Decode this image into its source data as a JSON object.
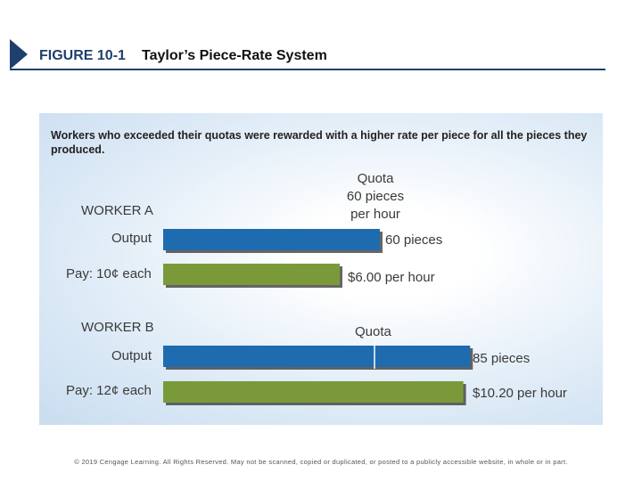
{
  "header": {
    "figure_label": "FIGURE 10-1",
    "figure_title": "Taylor’s Piece-Rate System"
  },
  "caption": "Workers who exceeded their quotas were rewarded with a higher rate per piece for all the pieces they produced.",
  "footer": {
    "copyright": "© 2019 Cengage Learning. All Rights Reserved. May not be scanned, copied or duplicated, or posted to a publicly accessible website, in whole or in part."
  },
  "colors": {
    "output_bar": "#1f6bb0",
    "pay_bar": "#7a9a3a",
    "header": "#1f3f6d"
  },
  "chart_data": {
    "type": "bar",
    "orientation": "horizontal",
    "title": "Taylor’s Piece-Rate System",
    "quota_pieces": 60,
    "quota_label_a": [
      "Quota",
      "60 pieces",
      "per hour"
    ],
    "quota_label_b": "Quota",
    "groups": [
      {
        "worker": "WORKER A",
        "output_label": "Output",
        "pay_label": "Pay: 10¢ each",
        "output_pieces": 60,
        "output_value_label": "60 pieces",
        "pay_dollars": 6.0,
        "pay_value_label": "$6.00 per hour"
      },
      {
        "worker": "WORKER B",
        "output_label": "Output",
        "pay_label": "Pay: 12¢ each",
        "output_pieces": 85,
        "output_value_label": "85 pieces",
        "pay_dollars": 10.2,
        "pay_value_label": "$10.20 per hour"
      }
    ]
  }
}
